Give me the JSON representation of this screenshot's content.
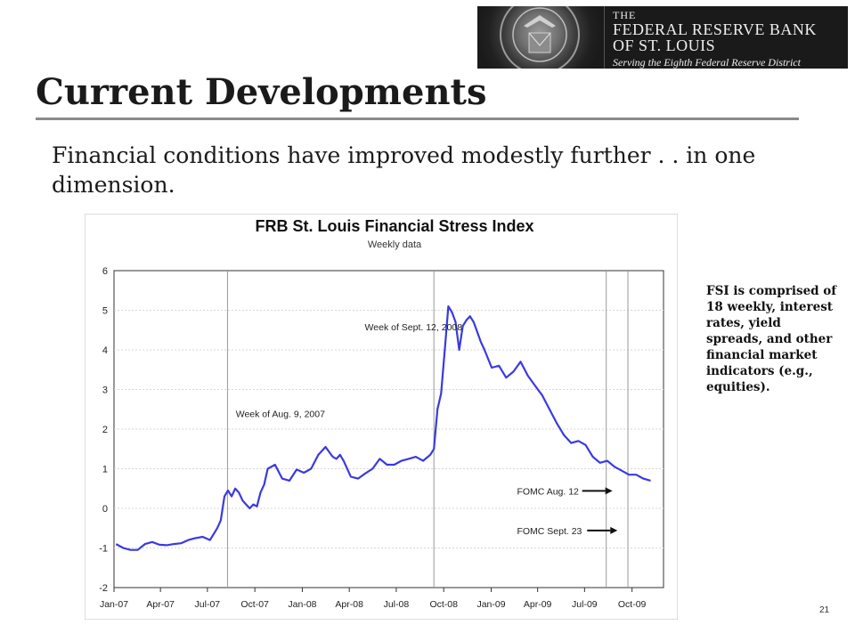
{
  "logo": {
    "line1": "THE",
    "line2": "FEDERAL RESERVE BANK",
    "line3": "OF ST. LOUIS",
    "tagline": "Serving the Eighth Federal Reserve District"
  },
  "slide": {
    "title": "Current Developments",
    "subtitle": "Financial conditions have improved modestly further . . in one dimension.",
    "note": "FSI is comprised of 18 weekly, interest rates, yield spreads, and other financial market indicators (e.g., equities).",
    "page_number": "21"
  },
  "chart_data": {
    "type": "line",
    "title": "FRB St. Louis Financial Stress Index",
    "subtitle": "Weekly data",
    "xlabel": "",
    "ylabel": "",
    "ylim": [
      -2,
      6
    ],
    "yticks": [
      -2,
      -1,
      0,
      1,
      2,
      3,
      4,
      5,
      6
    ],
    "xlim": [
      "2007-01-01",
      "2009-12-01"
    ],
    "xticks": [
      {
        "label": "Jan-07",
        "date": "2007-01-01"
      },
      {
        "label": "Apr-07",
        "date": "2007-04-01"
      },
      {
        "label": "Jul-07",
        "date": "2007-07-01"
      },
      {
        "label": "Oct-07",
        "date": "2007-10-01"
      },
      {
        "label": "Jan-08",
        "date": "2008-01-01"
      },
      {
        "label": "Apr-08",
        "date": "2008-04-01"
      },
      {
        "label": "Jul-08",
        "date": "2008-07-01"
      },
      {
        "label": "Oct-08",
        "date": "2008-10-01"
      },
      {
        "label": "Jan-09",
        "date": "2009-01-01"
      },
      {
        "label": "Apr-09",
        "date": "2009-04-01"
      },
      {
        "label": "Jul-09",
        "date": "2009-07-01"
      },
      {
        "label": "Oct-09",
        "date": "2009-10-01"
      }
    ],
    "grid": true,
    "series_color": "#3a3ae0",
    "series": [
      {
        "x": [
          "2007-01-05",
          "2007-01-19",
          "2007-02-02",
          "2007-02-16",
          "2007-03-02",
          "2007-03-16",
          "2007-03-30",
          "2007-04-13",
          "2007-04-27",
          "2007-05-11",
          "2007-05-25",
          "2007-06-08",
          "2007-06-22",
          "2007-07-06",
          "2007-07-20",
          "2007-07-27",
          "2007-08-03",
          "2007-08-10",
          "2007-08-17",
          "2007-08-24",
          "2007-08-31",
          "2007-09-07",
          "2007-09-14",
          "2007-09-21",
          "2007-09-28",
          "2007-10-05",
          "2007-10-12",
          "2007-10-19",
          "2007-10-26",
          "2007-11-09",
          "2007-11-23",
          "2007-12-07",
          "2007-12-21",
          "2008-01-04",
          "2008-01-18",
          "2008-02-01",
          "2008-02-15",
          "2008-02-29",
          "2008-03-07",
          "2008-03-14",
          "2008-03-21",
          "2008-04-04",
          "2008-04-18",
          "2008-05-02",
          "2008-05-16",
          "2008-05-30",
          "2008-06-13",
          "2008-06-27",
          "2008-07-11",
          "2008-07-25",
          "2008-08-08",
          "2008-08-22",
          "2008-09-05",
          "2008-09-12",
          "2008-09-19",
          "2008-09-26",
          "2008-10-03",
          "2008-10-10",
          "2008-10-17",
          "2008-10-24",
          "2008-10-31",
          "2008-11-07",
          "2008-11-14",
          "2008-11-21",
          "2008-11-28",
          "2008-12-05",
          "2008-12-12",
          "2008-12-19",
          "2009-01-02",
          "2009-01-16",
          "2009-01-30",
          "2009-02-13",
          "2009-02-27",
          "2009-03-13",
          "2009-03-27",
          "2009-04-10",
          "2009-04-24",
          "2009-05-08",
          "2009-05-22",
          "2009-06-05",
          "2009-06-19",
          "2009-07-03",
          "2009-07-17",
          "2009-07-31",
          "2009-08-14",
          "2009-08-28",
          "2009-09-11",
          "2009-09-25",
          "2009-10-09",
          "2009-10-23",
          "2009-11-06"
        ],
        "values": [
          -0.9,
          -1.0,
          -1.05,
          -1.05,
          -0.9,
          -0.85,
          -0.92,
          -0.93,
          -0.9,
          -0.88,
          -0.8,
          -0.75,
          -0.72,
          -0.8,
          -0.5,
          -0.3,
          0.3,
          0.45,
          0.3,
          0.5,
          0.4,
          0.2,
          0.1,
          0.0,
          0.1,
          0.05,
          0.4,
          0.6,
          1.0,
          1.1,
          0.75,
          0.7,
          0.98,
          0.9,
          1.0,
          1.35,
          1.55,
          1.3,
          1.25,
          1.35,
          1.2,
          0.8,
          0.75,
          0.88,
          1.0,
          1.25,
          1.1,
          1.1,
          1.2,
          1.25,
          1.3,
          1.2,
          1.35,
          1.5,
          2.5,
          2.9,
          4.0,
          5.1,
          4.95,
          4.7,
          4.0,
          4.6,
          4.75,
          4.85,
          4.7,
          4.45,
          4.2,
          4.0,
          3.55,
          3.6,
          3.3,
          3.45,
          3.7,
          3.35,
          3.1,
          2.85,
          2.5,
          2.15,
          1.85,
          1.65,
          1.7,
          1.6,
          1.3,
          1.15,
          1.2,
          1.05,
          0.95,
          0.85,
          0.85,
          0.75,
          0.7
        ]
      }
    ],
    "vlines": [
      {
        "date": "2007-08-09",
        "label": "Week of Aug. 9, 2007"
      },
      {
        "date": "2008-09-12",
        "label": "Week of Sept. 12, 2008"
      },
      {
        "date": "2009-08-12",
        "label": ""
      },
      {
        "date": "2009-09-23",
        "label": ""
      }
    ],
    "annotations": [
      {
        "text": "Week of Sept. 12, 2008",
        "x": "2008-05-01",
        "y": 4.5
      },
      {
        "text": "Week of Aug. 9, 2007",
        "x": "2007-08-25",
        "y": 2.3
      },
      {
        "text": "FOMC Aug. 12",
        "x": "2009-02-20",
        "y": 0.35,
        "arrow": true
      },
      {
        "text": "FOMC Sept. 23",
        "x": "2009-02-20",
        "y": -0.65,
        "arrow": true
      }
    ]
  }
}
